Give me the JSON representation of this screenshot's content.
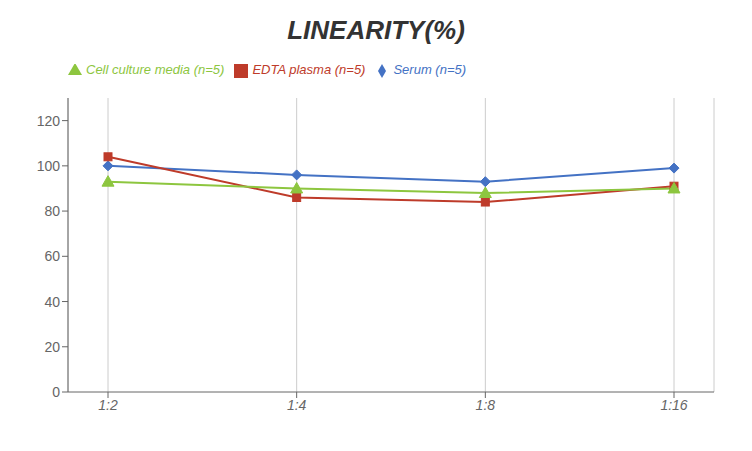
{
  "chart_data": {
    "type": "line",
    "title": "LINEARITY(%)",
    "categories": [
      "1:2",
      "1:4",
      "1:8",
      "1:16"
    ],
    "series": [
      {
        "name": "Serum (n=5)",
        "color": "#4472C4",
        "marker": "diamond",
        "values": [
          100,
          96,
          93,
          99
        ]
      },
      {
        "name": "EDTA plasma (n=5)",
        "color": "#BE3B2A",
        "marker": "square",
        "values": [
          104,
          86,
          84,
          91
        ]
      },
      {
        "name": "Cell culture media (n=5)",
        "color": "#8DC63F",
        "marker": "triangle",
        "values": [
          93,
          90,
          88,
          90
        ]
      }
    ],
    "ylim": [
      0,
      130
    ],
    "yticks": [
      0,
      20,
      40,
      60,
      80,
      100,
      120
    ],
    "grid": "x",
    "legend": "top"
  }
}
